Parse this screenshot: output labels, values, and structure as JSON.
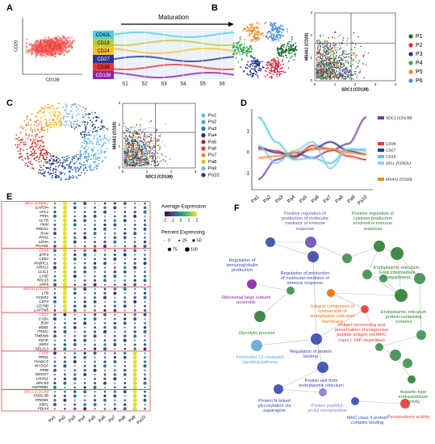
{
  "panels": {
    "A": {
      "label": "A",
      "y_axis": "CD20",
      "x_axis": "CD138",
      "arrow_title": "Maturation",
      "rows": [
        "CD62L",
        "CD19",
        "CD24",
        "CD27",
        "CD38",
        "CD138"
      ],
      "stages": [
        "S1",
        "S2",
        "S3",
        "S4",
        "S5",
        "S6"
      ]
    },
    "B": {
      "label": "B",
      "x_axis": "SDC1 (CD138)",
      "y_axis": "MS4A1 (CD20)",
      "xticks": [
        "0",
        "1",
        "2",
        "3",
        "4"
      ],
      "yticks": [
        "0",
        "1",
        "2",
        "3"
      ],
      "legend": [
        {
          "name": "P1",
          "color": "#1b6b2f"
        },
        {
          "name": "P2",
          "color": "#d7263d"
        },
        {
          "name": "P3",
          "color": "#283593"
        },
        {
          "name": "P4",
          "color": "#3aa655"
        },
        {
          "name": "P5",
          "color": "#f08a24"
        },
        {
          "name": "P6",
          "color": "#4a90d9"
        }
      ]
    },
    "C": {
      "label": "C",
      "x_axis": "SDC1 (CD138)",
      "y_axis": "MS4A1 (CD20)",
      "xticks": [
        "0",
        "1",
        "2",
        "3"
      ],
      "yticks": [
        "0",
        "1",
        "2",
        "3"
      ],
      "legend": [
        {
          "name": "Pa1",
          "color": "#5bc0eb"
        },
        {
          "name": "Pa2",
          "color": "#4aa3df"
        },
        {
          "name": "Pa3",
          "color": "#2e6fb7"
        },
        {
          "name": "Pa4",
          "color": "#1f2f7a"
        },
        {
          "name": "Pa5",
          "color": "#b3261e"
        },
        {
          "name": "Pa6",
          "color": "#e53935"
        },
        {
          "name": "Pa7",
          "color": "#f08a24"
        },
        {
          "name": "Pa8",
          "color": "#f4b400"
        },
        {
          "name": "Pa9",
          "color": "#7fb3e0"
        },
        {
          "name": "Pa10",
          "color": "#0d3b66"
        }
      ]
    },
    "D": {
      "label": "D",
      "categories": [
        "Pa1",
        "Pa2",
        "Pa3",
        "Pa4",
        "Pa5",
        "Pa6",
        "Pa7",
        "Pa8",
        "Pa9",
        "Pa10"
      ],
      "yticks": [
        "1",
        "0",
        "-1"
      ],
      "legend": [
        {
          "name": "SDC1 (CD138)",
          "color": "#7b3fa0"
        },
        {
          "name": "CD38",
          "color": "#e53935"
        },
        {
          "name": "CD27",
          "color": "#283593"
        },
        {
          "name": "CD19",
          "color": "#4dd0e1"
        },
        {
          "name": "SELL (CD62L)",
          "color": "#90caf9"
        },
        {
          "name": "MS4A1 (CD20)",
          "color": "#f08a24"
        }
      ]
    },
    "E": {
      "label": "E",
      "groups": [
        {
          "header": "SELL (CD62L)",
          "genes": [
            "GAPDH",
            "CFL1",
            "PPIA",
            "ACTB",
            "PKM",
            "PRDX1",
            "RAN",
            "PFN1",
            "LDHA",
            "PGAM1"
          ]
        },
        {
          "header": "CD19",
          "genes": [
            "BTF3",
            "CD52",
            "PABPC1",
            "ARPC2",
            "CLIC1",
            "LY6E",
            "RPL15",
            "ARF5"
          ]
        },
        {
          "header": "MS4A1 (CD20)",
          "genes": [
            "LTB",
            "FCER2",
            "CD74",
            "CD79B",
            "LAPTM5"
          ]
        },
        {
          "header": "CD27",
          "genes": [
            "CYBA",
            "B2M",
            "MZB1",
            "ITM2C",
            "TMBIM6",
            "PSAP",
            "SSR4",
            "SEL1L3"
          ]
        },
        {
          "header": "CD38",
          "genes": [
            "RPN1",
            "TXNDC5",
            "MYDGF",
            "PPIB",
            "DDOST",
            "LMAN1",
            "SPCS3",
            "HSP90B1"
          ]
        },
        {
          "header": "SDC1 (CD138)",
          "genes": [
            "FNDC3B",
            "PRDM1",
            "XBP1",
            "PDIA4"
          ]
        }
      ],
      "columns": [
        "Pa1",
        "Pa2",
        "Pa3",
        "Pa4",
        "Pa5",
        "Pa6",
        "Pa7",
        "Pa8",
        "Pa9",
        "Pa10"
      ],
      "color_legend_title": "Average Expression",
      "color_ticks": [
        "-2",
        "-1",
        "0",
        "1",
        "2"
      ],
      "size_legend_title": "Percent Expressing",
      "size_ticks": [
        "0",
        "25",
        "50",
        "75",
        "100"
      ]
    },
    "F": {
      "label": "F",
      "terms": [
        {
          "text": "Positive regulation of production of molecular mediator of immune response",
          "color": "#6a4fb0"
        },
        {
          "text": "Positive regulation of cytokine production involved in immune response",
          "color": "#2e7d32"
        },
        {
          "text": "Regulation of immunoglobulin production",
          "color": "#3949ab"
        },
        {
          "text": "Regulation of production of molecular mediator of immune response",
          "color": "#3949ab"
        },
        {
          "text": "Endoplasmic reticulum-Golgi intermediate compartment",
          "color": "#2e7d32"
        },
        {
          "text": "Ribosomal large subunit assembly",
          "color": "#8e24aa"
        },
        {
          "text": "Integral component of luminal side of endoplasmic reticulum membrane",
          "color": "#ef6c00"
        },
        {
          "text": "Endoplasmic reticulum protein-containing complex",
          "color": "#2e7d32"
        },
        {
          "text": "Glycolytic process",
          "color": "#2e7d32"
        },
        {
          "text": "Antigen processing and presentation of exogenous peptide antigen via MHC class I, TAP-dependent",
          "color": "#e53935"
        },
        {
          "text": "Regulation of protein binding",
          "color": "#3949ab"
        },
        {
          "text": "Interleukin-12-mediated signaling pathway",
          "color": "#64a6d9"
        },
        {
          "text": "Protein exit from endoplasmic reticulum",
          "color": "#3949ab"
        },
        {
          "text": "Protein N-linked glycosylation via asparagine",
          "color": "#3949ab"
        },
        {
          "text": "Protein peptidyl-prolyl isomerization",
          "color": "#9575cd"
        },
        {
          "text": "Aspartic-type endopeptidase activity",
          "color": "#2e7d32"
        },
        {
          "text": "MHC class II protein complex binding",
          "color": "#3949ab"
        },
        {
          "text": "Peroxiredoxin activity",
          "color": "#e53935"
        }
      ]
    }
  }
}
